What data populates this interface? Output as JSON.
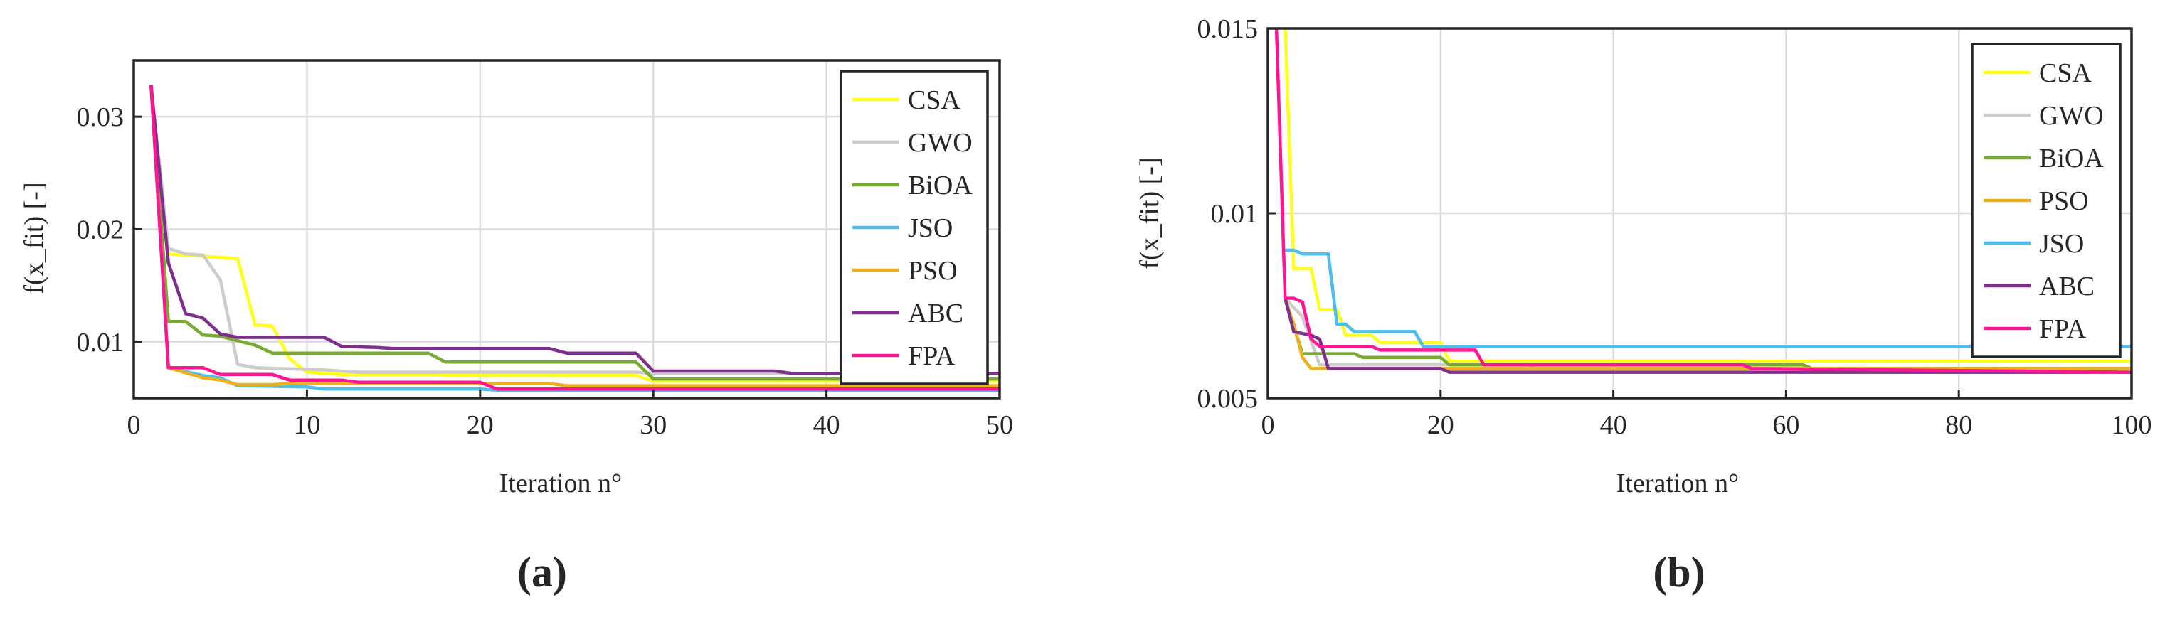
{
  "chart_data": [
    {
      "type": "line",
      "panel_label": "(a)",
      "xlabel": "Iteration n°",
      "ylabel": "f(x_fit) [-]",
      "xlim": [
        0,
        50
      ],
      "ylim": [
        0.005,
        0.035
      ],
      "xticks": [
        0,
        10,
        20,
        30,
        40,
        50
      ],
      "yticks": [
        0.01,
        0.02,
        0.03
      ],
      "xtick_labels": [
        "0",
        "10",
        "20",
        "30",
        "40",
        "50"
      ],
      "ytick_labels": [
        "0.01",
        "0.02",
        "0.03"
      ],
      "grid": true,
      "legend_position": "top-right",
      "series": [
        {
          "name": "CSA",
          "color": "#ffff1a",
          "points": [
            [
              1,
              0.0328
            ],
            [
              2,
              0.0178
            ],
            [
              3,
              0.0177
            ],
            [
              4,
              0.0176
            ],
            [
              5,
              0.0175
            ],
            [
              6,
              0.0174
            ],
            [
              7,
              0.0115
            ],
            [
              8,
              0.0114
            ],
            [
              9,
              0.0085
            ],
            [
              10,
              0.0073
            ],
            [
              12,
              0.0071
            ],
            [
              17,
              0.0071
            ],
            [
              18,
              0.007
            ],
            [
              29,
              0.007
            ],
            [
              30,
              0.0065
            ],
            [
              50,
              0.0065
            ]
          ]
        },
        {
          "name": "GWO",
          "color": "#cccccc",
          "points": [
            [
              1,
              0.0328
            ],
            [
              2,
              0.0183
            ],
            [
              3,
              0.0178
            ],
            [
              4,
              0.0177
            ],
            [
              5,
              0.0155
            ],
            [
              6,
              0.008
            ],
            [
              7,
              0.0077
            ],
            [
              11,
              0.0075
            ],
            [
              13,
              0.0073
            ],
            [
              29,
              0.0073
            ],
            [
              30,
              0.0072
            ],
            [
              50,
              0.0072
            ]
          ]
        },
        {
          "name": "BiOA",
          "color": "#77ac30",
          "points": [
            [
              1,
              0.0328
            ],
            [
              2,
              0.0118
            ],
            [
              3,
              0.0118
            ],
            [
              4,
              0.0106
            ],
            [
              5,
              0.0105
            ],
            [
              7,
              0.0097
            ],
            [
              8,
              0.009
            ],
            [
              17,
              0.009
            ],
            [
              18,
              0.0082
            ],
            [
              29,
              0.0082
            ],
            [
              30,
              0.0067
            ],
            [
              50,
              0.0067
            ]
          ]
        },
        {
          "name": "JSO",
          "color": "#4dbeee",
          "points": [
            [
              1,
              0.0328
            ],
            [
              2,
              0.0077
            ],
            [
              4,
              0.007
            ],
            [
              5,
              0.0068
            ],
            [
              6,
              0.0061
            ],
            [
              10,
              0.006
            ],
            [
              11,
              0.0058
            ],
            [
              20,
              0.0058
            ],
            [
              21,
              0.0057
            ],
            [
              50,
              0.0057
            ]
          ]
        },
        {
          "name": "PSO",
          "color": "#edb120",
          "points": [
            [
              1,
              0.0328
            ],
            [
              2,
              0.0077
            ],
            [
              4,
              0.0068
            ],
            [
              5,
              0.0066
            ],
            [
              6,
              0.0062
            ],
            [
              8,
              0.0062
            ],
            [
              9,
              0.0063
            ],
            [
              24,
              0.0063
            ],
            [
              25,
              0.0061
            ],
            [
              50,
              0.0061
            ]
          ]
        },
        {
          "name": "ABC",
          "color": "#7e2f8e",
          "points": [
            [
              1,
              0.0328
            ],
            [
              2,
              0.017
            ],
            [
              3,
              0.0125
            ],
            [
              4,
              0.0121
            ],
            [
              5,
              0.0107
            ],
            [
              6,
              0.0104
            ],
            [
              11,
              0.0104
            ],
            [
              12,
              0.0096
            ],
            [
              14,
              0.0095
            ],
            [
              15,
              0.0094
            ],
            [
              24,
              0.0094
            ],
            [
              25,
              0.009
            ],
            [
              29,
              0.009
            ],
            [
              30,
              0.0074
            ],
            [
              37,
              0.0074
            ],
            [
              38,
              0.0072
            ],
            [
              50,
              0.0072
            ]
          ]
        },
        {
          "name": "FPA",
          "color": "#ff1493",
          "points": [
            [
              1,
              0.0328
            ],
            [
              2,
              0.0077
            ],
            [
              4,
              0.0077
            ],
            [
              5,
              0.0071
            ],
            [
              8,
              0.0071
            ],
            [
              9,
              0.0066
            ],
            [
              12,
              0.0066
            ],
            [
              13,
              0.0064
            ],
            [
              20,
              0.0064
            ],
            [
              21,
              0.0058
            ],
            [
              50,
              0.0058
            ]
          ]
        }
      ]
    },
    {
      "type": "line",
      "panel_label": "(b)",
      "xlabel": "Iteration n°",
      "ylabel": "f(x_fit) [-]",
      "xlim": [
        0,
        100
      ],
      "ylim": [
        0.005,
        0.015
      ],
      "xticks": [
        0,
        20,
        40,
        60,
        80,
        100
      ],
      "yticks": [
        0.005,
        0.01,
        0.015
      ],
      "xtick_labels": [
        "0",
        "20",
        "40",
        "60",
        "80",
        "100"
      ],
      "ytick_labels": [
        "0.005",
        "0.01",
        "0.015"
      ],
      "grid": true,
      "legend_position": "top-right",
      "series": [
        {
          "name": "CSA",
          "color": "#ffff1a",
          "points": [
            [
              2,
              0.015
            ],
            [
              3,
              0.0085
            ],
            [
              5,
              0.0085
            ],
            [
              6,
              0.0074
            ],
            [
              8,
              0.0074
            ],
            [
              9,
              0.0067
            ],
            [
              12,
              0.0067
            ],
            [
              13,
              0.0065
            ],
            [
              20,
              0.0065
            ],
            [
              21,
              0.006
            ],
            [
              100,
              0.006
            ]
          ]
        },
        {
          "name": "GWO",
          "color": "#cccccc",
          "points": [
            [
              2,
              0.0077
            ],
            [
              4,
              0.0072
            ],
            [
              6,
              0.0059
            ],
            [
              30,
              0.0059
            ],
            [
              31,
              0.0058
            ],
            [
              100,
              0.0058
            ]
          ]
        },
        {
          "name": "BiOA",
          "color": "#77ac30",
          "points": [
            [
              2,
              0.0077
            ],
            [
              4,
              0.0062
            ],
            [
              10,
              0.0062
            ],
            [
              11,
              0.0061
            ],
            [
              20,
              0.0061
            ],
            [
              21,
              0.0059
            ],
            [
              62,
              0.0059
            ],
            [
              63,
              0.0058
            ],
            [
              100,
              0.0058
            ]
          ]
        },
        {
          "name": "PSO",
          "color": "#edb120",
          "points": [
            [
              2,
              0.0077
            ],
            [
              3,
              0.007
            ],
            [
              4,
              0.0061
            ],
            [
              5,
              0.0058
            ],
            [
              100,
              0.0058
            ]
          ]
        },
        {
          "name": "JSO",
          "color": "#4dbeee",
          "points": [
            [
              2,
              0.009
            ],
            [
              3,
              0.009
            ],
            [
              4,
              0.0089
            ],
            [
              7,
              0.0089
            ],
            [
              8,
              0.007
            ],
            [
              9,
              0.007
            ],
            [
              10,
              0.0068
            ],
            [
              17,
              0.0068
            ],
            [
              18,
              0.0064
            ],
            [
              100,
              0.0064
            ]
          ]
        },
        {
          "name": "ABC",
          "color": "#7e2f8e",
          "points": [
            [
              2,
              0.0077
            ],
            [
              3,
              0.0068
            ],
            [
              5,
              0.0067
            ],
            [
              6,
              0.0066
            ],
            [
              7,
              0.0058
            ],
            [
              20,
              0.0058
            ],
            [
              21,
              0.0057
            ],
            [
              100,
              0.0057
            ]
          ]
        },
        {
          "name": "FPA",
          "color": "#ff1493",
          "points": [
            [
              1,
              0.015
            ],
            [
              2,
              0.0077
            ],
            [
              3,
              0.0077
            ],
            [
              4,
              0.0076
            ],
            [
              5,
              0.0066
            ],
            [
              6,
              0.0064
            ],
            [
              12,
              0.0064
            ],
            [
              13,
              0.0063
            ],
            [
              24,
              0.0063
            ],
            [
              25,
              0.0059
            ],
            [
              55,
              0.0059
            ],
            [
              56,
              0.0058
            ],
            [
              100,
              0.0057
            ]
          ]
        }
      ]
    }
  ]
}
